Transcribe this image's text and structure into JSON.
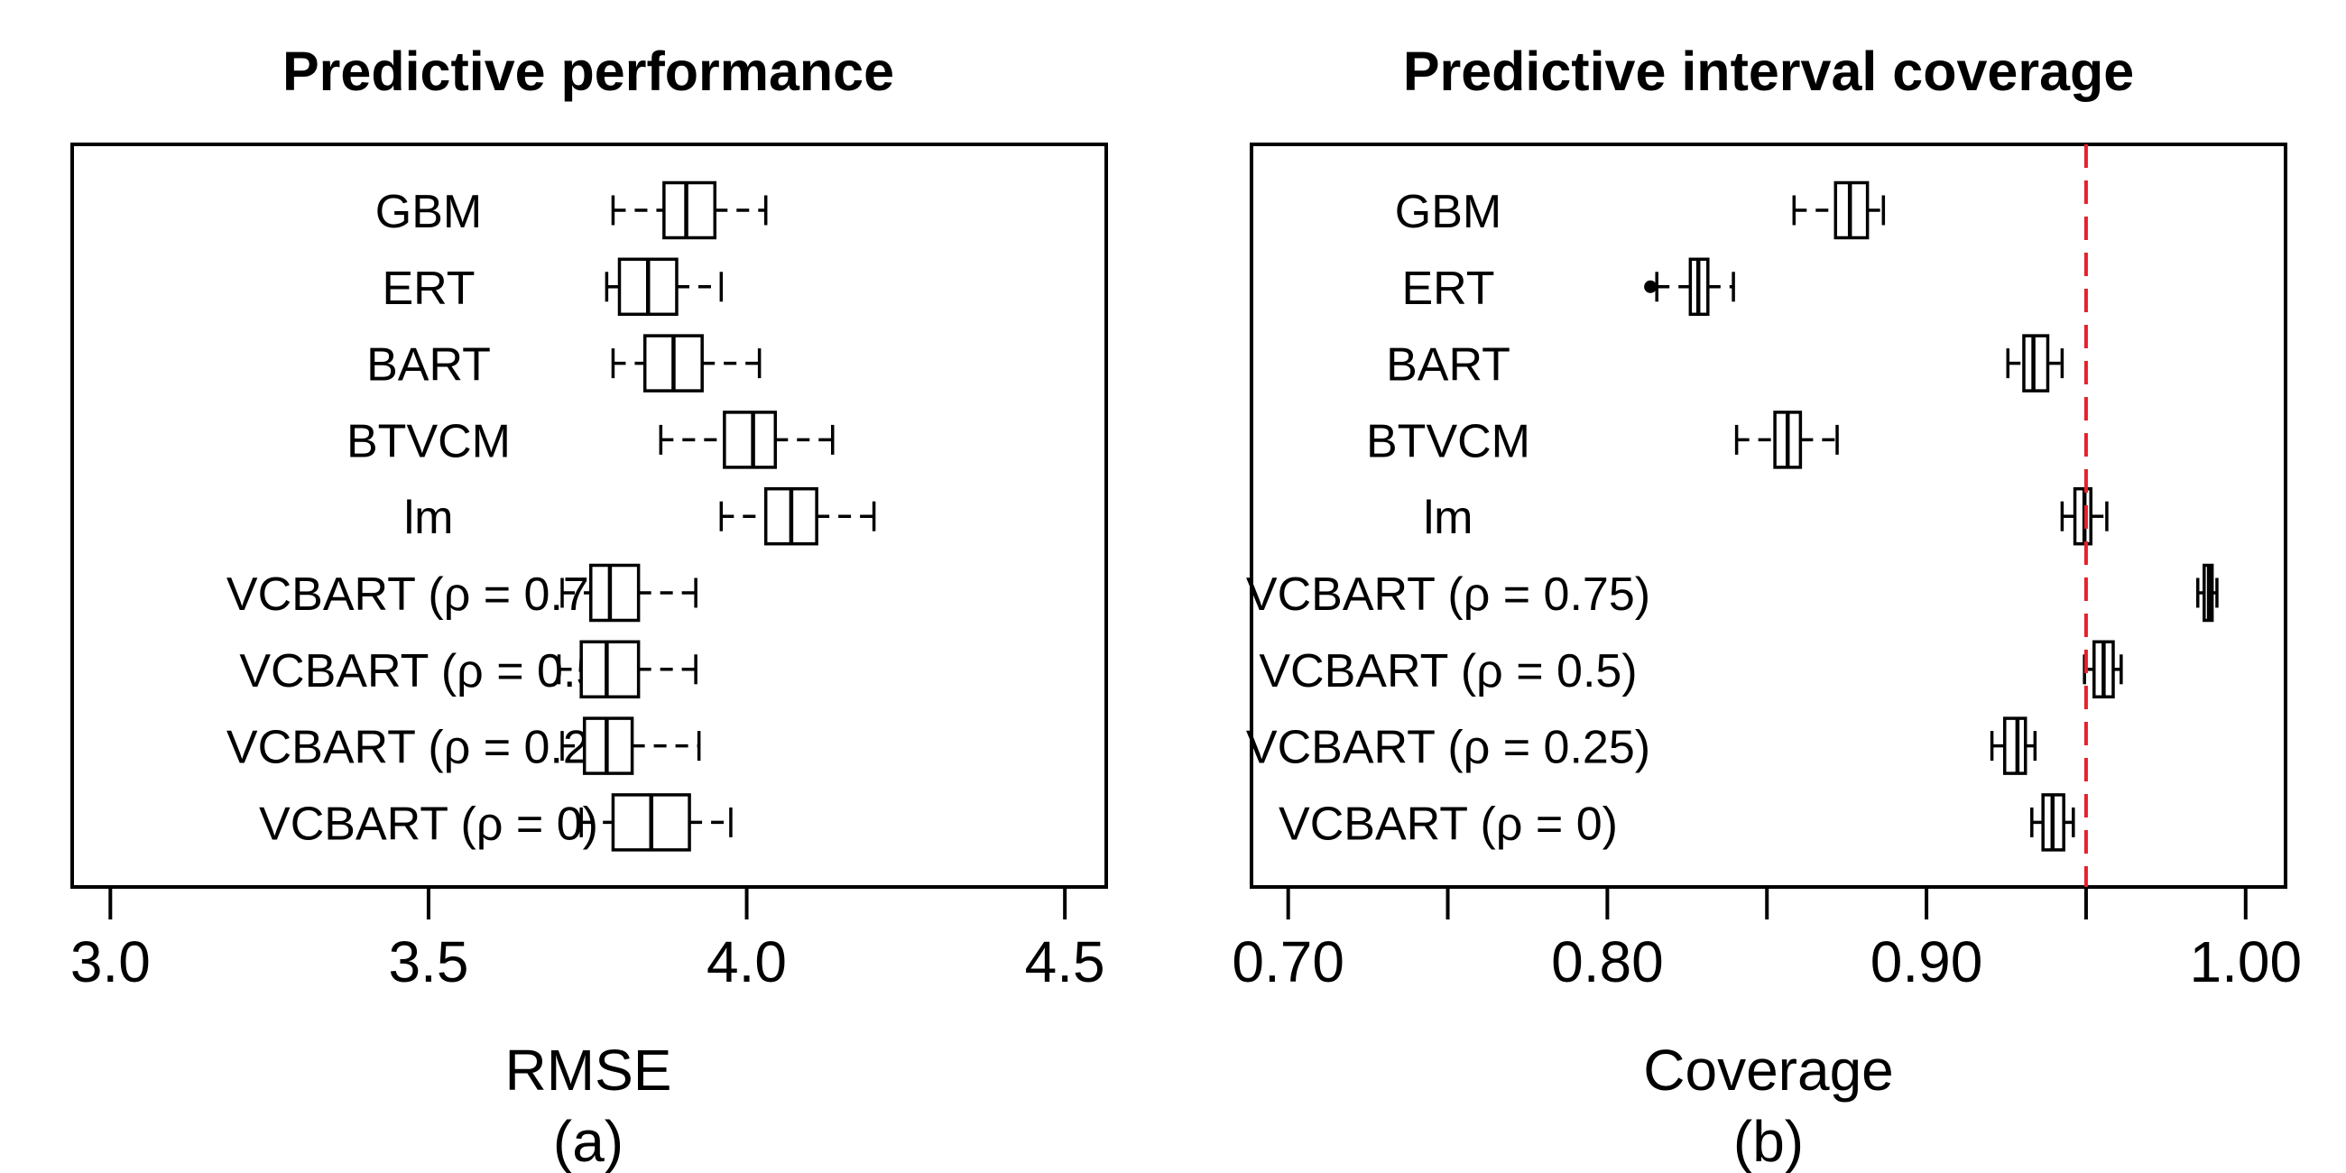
{
  "chart_data": [
    {
      "type": "boxplot",
      "orientation": "horizontal",
      "title": "Predictive performance",
      "xlabel": "RMSE",
      "panel_label": "(a)",
      "xlim": [
        2.94,
        4.565
      ],
      "xticks": [
        3.0,
        3.5,
        4.0,
        4.5
      ],
      "xtick_labels": [
        "3.0",
        "3.5",
        "4.0",
        "4.5"
      ],
      "grid": false,
      "categories": [
        "GBM",
        "ERT",
        "BART",
        "BTVCM",
        "lm",
        "VCBART (ρ = 0.75)",
        "VCBART (ρ = 0.5)",
        "VCBART (ρ = 0.25)",
        "VCBART (ρ = 0)"
      ],
      "boxes": [
        {
          "whisker_low": 3.79,
          "q1": 3.87,
          "median": 3.905,
          "q3": 3.95,
          "whisker_high": 4.03,
          "outliers": []
        },
        {
          "whisker_low": 3.78,
          "q1": 3.8,
          "median": 3.845,
          "q3": 3.89,
          "whisker_high": 3.96,
          "outliers": []
        },
        {
          "whisker_low": 3.79,
          "q1": 3.84,
          "median": 3.885,
          "q3": 3.93,
          "whisker_high": 4.02,
          "outliers": []
        },
        {
          "whisker_low": 3.865,
          "q1": 3.965,
          "median": 4.01,
          "q3": 4.045,
          "whisker_high": 4.135,
          "outliers": []
        },
        {
          "whisker_low": 3.96,
          "q1": 4.03,
          "median": 4.07,
          "q3": 4.11,
          "whisker_high": 4.2,
          "outliers": []
        },
        {
          "whisker_low": 3.71,
          "q1": 3.755,
          "median": 3.785,
          "q3": 3.83,
          "whisker_high": 3.92,
          "outliers": []
        },
        {
          "whisker_low": 3.705,
          "q1": 3.74,
          "median": 3.78,
          "q3": 3.83,
          "whisker_high": 3.92,
          "outliers": []
        },
        {
          "whisker_low": 3.71,
          "q1": 3.745,
          "median": 3.78,
          "q3": 3.82,
          "whisker_high": 3.925,
          "outliers": []
        },
        {
          "whisker_low": 3.74,
          "q1": 3.79,
          "median": 3.85,
          "q3": 3.91,
          "whisker_high": 3.975,
          "outliers": []
        }
      ],
      "reference_line": null
    },
    {
      "type": "boxplot",
      "orientation": "horizontal",
      "title": "Predictive interval coverage",
      "xlabel": "Coverage",
      "panel_label": "(b)",
      "xlim": [
        0.6885,
        1.0125
      ],
      "xticks": [
        0.7,
        0.75,
        0.8,
        0.85,
        0.9,
        0.95,
        1.0
      ],
      "xtick_labels": [
        "0.70",
        "",
        "0.80",
        "",
        "0.90",
        "",
        "1.00"
      ],
      "grid": false,
      "categories": [
        "GBM",
        "ERT",
        "BART",
        "BTVCM",
        "lm",
        "VCBART (ρ = 0.75)",
        "VCBART (ρ = 0.5)",
        "VCBART (ρ = 0.25)",
        "VCBART (ρ = 0)"
      ],
      "boxes": [
        {
          "whisker_low": 0.8585,
          "q1": 0.8715,
          "median": 0.876,
          "q3": 0.8815,
          "whisker_high": 0.8865,
          "outliers": []
        },
        {
          "whisker_low": 0.8155,
          "q1": 0.826,
          "median": 0.8285,
          "q3": 0.8315,
          "whisker_high": 0.8395,
          "outliers": [
            0.8135
          ]
        },
        {
          "whisker_low": 0.9255,
          "q1": 0.9305,
          "median": 0.9335,
          "q3": 0.938,
          "whisker_high": 0.9425,
          "outliers": []
        },
        {
          "whisker_low": 0.8405,
          "q1": 0.8525,
          "median": 0.8565,
          "q3": 0.8605,
          "whisker_high": 0.872,
          "outliers": []
        },
        {
          "whisker_low": 0.9425,
          "q1": 0.9465,
          "median": 0.9495,
          "q3": 0.9515,
          "whisker_high": 0.9565,
          "outliers": []
        },
        {
          "whisker_low": 0.985,
          "q1": 0.987,
          "median": 0.9885,
          "q3": 0.9895,
          "whisker_high": 0.991,
          "outliers": []
        },
        {
          "whisker_low": 0.9495,
          "q1": 0.9525,
          "median": 0.9555,
          "q3": 0.9585,
          "whisker_high": 0.961,
          "outliers": []
        },
        {
          "whisker_low": 0.9205,
          "q1": 0.9245,
          "median": 0.9285,
          "q3": 0.931,
          "whisker_high": 0.934,
          "outliers": []
        },
        {
          "whisker_low": 0.933,
          "q1": 0.9365,
          "median": 0.9395,
          "q3": 0.943,
          "whisker_high": 0.946,
          "outliers": []
        }
      ],
      "reference_line": {
        "x": 0.95,
        "color": "#e8202a",
        "style": "dashed"
      }
    }
  ]
}
